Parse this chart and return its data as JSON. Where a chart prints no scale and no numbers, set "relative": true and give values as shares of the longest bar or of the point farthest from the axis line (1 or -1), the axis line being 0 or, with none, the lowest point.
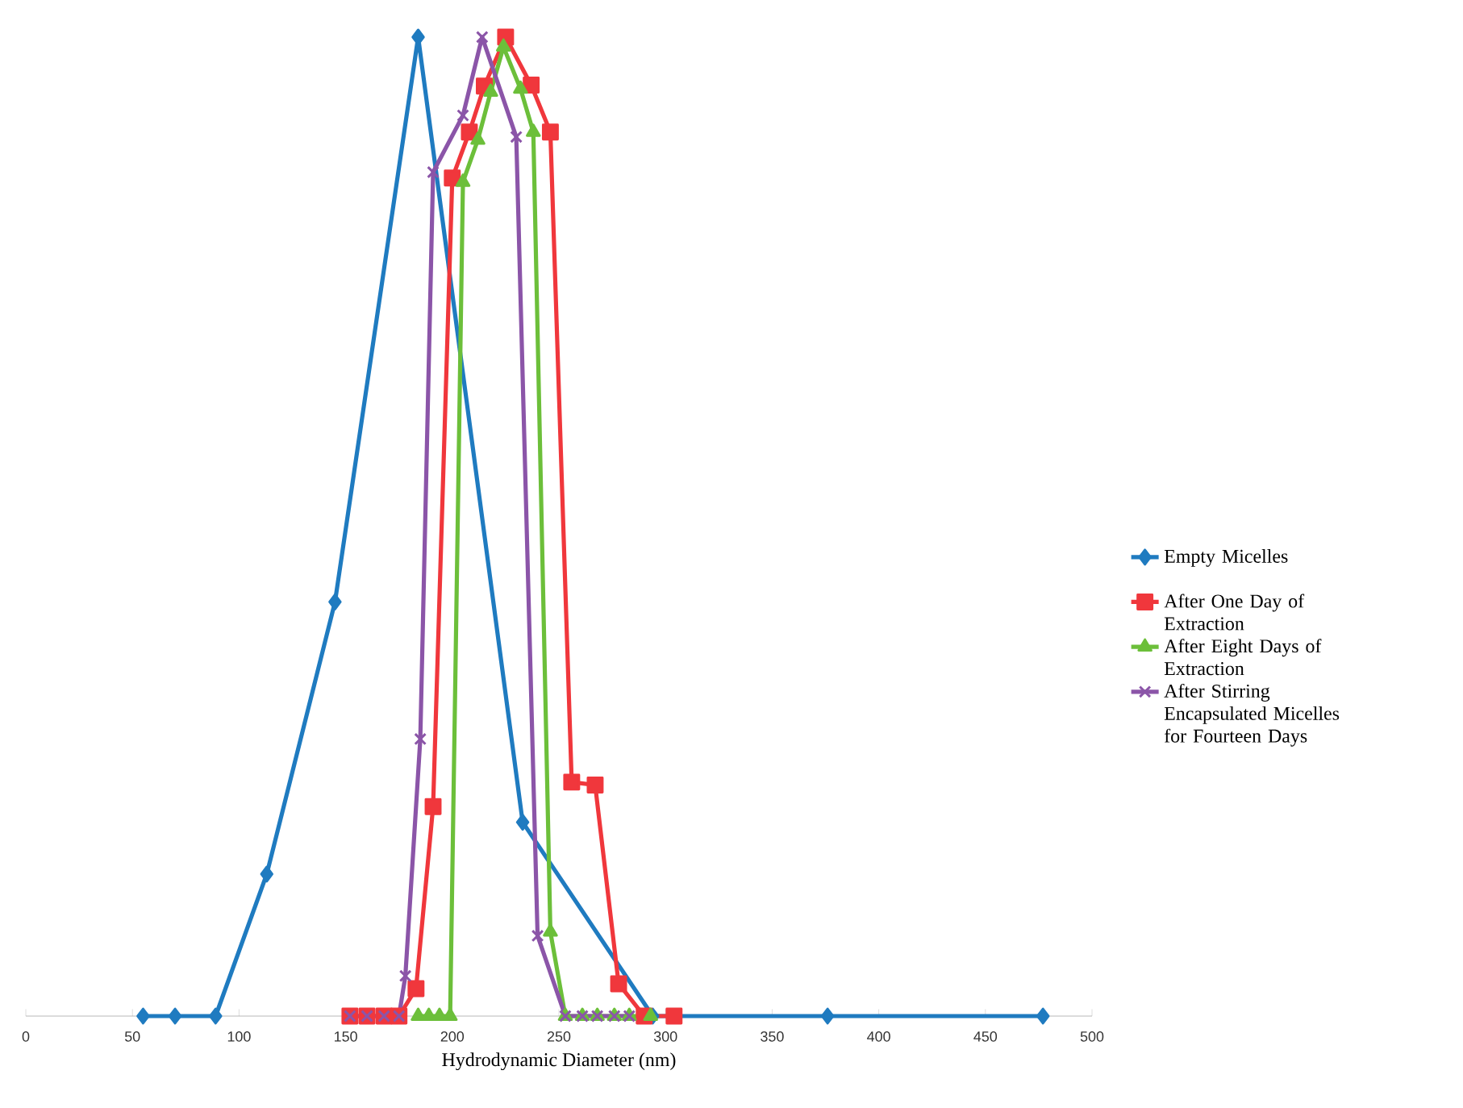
{
  "chart_data": {
    "type": "line",
    "xlabel": "Hydrodynamic Diameter (nm)",
    "relative": true,
    "legend": "right",
    "grid": false,
    "line_style": "solid",
    "xlim": [
      0,
      500
    ],
    "xticks": [
      0,
      50,
      100,
      150,
      200,
      250,
      300,
      350,
      400,
      450,
      500
    ],
    "series": [
      {
        "name": "Empty Micelles",
        "color": "#1f7bc0",
        "marker": "diamond",
        "x": [
          55,
          70,
          89,
          113,
          145,
          184,
          233,
          294,
          376,
          477
        ],
        "values": [
          0,
          0,
          0,
          0.145,
          0.423,
          1.0,
          0.198,
          0,
          0,
          0
        ]
      },
      {
        "name": "After One Day of Extraction",
        "color": "#f0373c",
        "marker": "square",
        "x": [
          152,
          160,
          168,
          175,
          183,
          191,
          200,
          208,
          215,
          225,
          237,
          246,
          256,
          267,
          278,
          290,
          304
        ],
        "values": [
          0,
          0,
          0,
          0,
          0.028,
          0.214,
          0.856,
          0.903,
          0.95,
          1.0,
          0.951,
          0.903,
          0.239,
          0.236,
          0.033,
          0,
          0
        ]
      },
      {
        "name": "After Eight Days of Extraction",
        "color": "#6cbf3a",
        "marker": "triangle",
        "x": [
          184,
          189,
          194,
          199,
          205,
          212,
          218,
          224,
          232,
          238,
          246,
          253,
          261,
          268,
          276,
          283,
          293
        ],
        "values": [
          0,
          0,
          0,
          0,
          0.852,
          0.895,
          0.944,
          0.99,
          0.947,
          0.903,
          0.086,
          0,
          0,
          0,
          0,
          0,
          0
        ]
      },
      {
        "name": "After Stirring Encapsulated Micelles for Fourteen Days",
        "color": "#8b55a8",
        "marker": "cross",
        "x": [
          152,
          160,
          168,
          175,
          178,
          185,
          191,
          205,
          214,
          230,
          240,
          253,
          261,
          268,
          276,
          283
        ],
        "values": [
          0,
          0,
          0,
          0,
          0.041,
          0.283,
          0.862,
          0.92,
          1.0,
          0.898,
          0.082,
          0,
          0,
          0,
          0,
          0
        ]
      }
    ]
  }
}
